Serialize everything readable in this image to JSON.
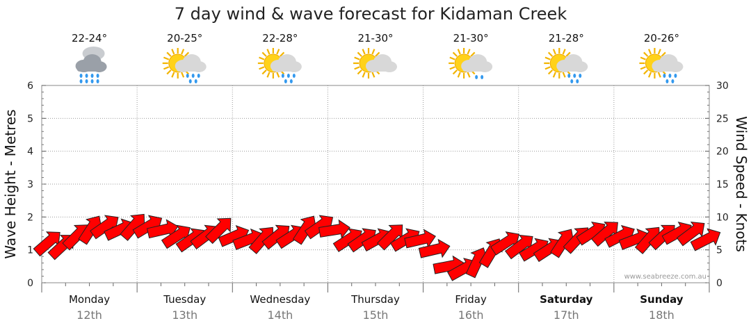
{
  "chart_data": {
    "type": "line",
    "title": "7 day wind & wave forecast for Kidaman Creek",
    "ylabel_left": "Wave Height - Metres",
    "ylabel_right": "Wind Speed - Knots",
    "ylim_left": [
      0,
      6
    ],
    "ylim_right": [
      0,
      30
    ],
    "yticks_left": [
      "0",
      "1",
      "2",
      "3",
      "4",
      "5",
      "6"
    ],
    "yticks_right": [
      "0",
      "5",
      "10",
      "15",
      "20",
      "25",
      "30"
    ],
    "grid": true,
    "days": [
      {
        "name": "Monday",
        "date": "12th",
        "temp": "22-24°",
        "icon": "rain-cloud-icon",
        "bold": false
      },
      {
        "name": "Tuesday",
        "date": "13th",
        "temp": "20-25°",
        "icon": "sun-cloud-rain-icon",
        "bold": false
      },
      {
        "name": "Wednesday",
        "date": "14th",
        "temp": "22-28°",
        "icon": "sun-cloud-rain-icon",
        "bold": false
      },
      {
        "name": "Thursday",
        "date": "15th",
        "temp": "21-30°",
        "icon": "sun-cloud-icon",
        "bold": false
      },
      {
        "name": "Friday",
        "date": "16th",
        "temp": "21-30°",
        "icon": "sun-cloud-light-rain-icon",
        "bold": false
      },
      {
        "name": "Saturday",
        "date": "17th",
        "temp": "21-28°",
        "icon": "sun-cloud-rain-icon",
        "bold": true
      },
      {
        "name": "Sunday",
        "date": "18th",
        "temp": "20-26°",
        "icon": "sun-cloud-rain-icon",
        "bold": true
      }
    ],
    "series": [
      {
        "kind": "wind arrows",
        "color": "#ff0000",
        "x_day": [
          0.0,
          0.15,
          0.3,
          0.45,
          0.6,
          0.75,
          0.9,
          1.05,
          1.2,
          1.35,
          1.5,
          1.65,
          1.8,
          1.95,
          2.1,
          2.25,
          2.4,
          2.55,
          2.7,
          2.85,
          3.0,
          3.15,
          3.3,
          3.45,
          3.6,
          3.75,
          3.9,
          4.05,
          4.2,
          4.35,
          4.5,
          4.65,
          4.8,
          4.95,
          5.1,
          5.25,
          5.4,
          5.55,
          5.7,
          5.85,
          6.0,
          6.15,
          6.3,
          6.45,
          6.6,
          6.75,
          6.9
        ],
        "wind_knots": [
          6,
          5.5,
          7,
          8,
          8.5,
          8,
          8.5,
          8.5,
          8,
          7,
          6.5,
          7,
          8,
          7,
          6.5,
          6.5,
          7,
          7,
          8,
          8.5,
          8,
          6.5,
          6.5,
          6.5,
          7,
          6.5,
          6.5,
          5,
          2.5,
          2,
          3,
          4.5,
          6,
          5.5,
          5,
          5,
          6,
          6.5,
          7.5,
          7.5,
          7,
          6.5,
          6.5,
          7,
          7.5,
          7.5,
          6.5
        ]
      }
    ],
    "credit": "www.seabreeze.com.au"
  }
}
